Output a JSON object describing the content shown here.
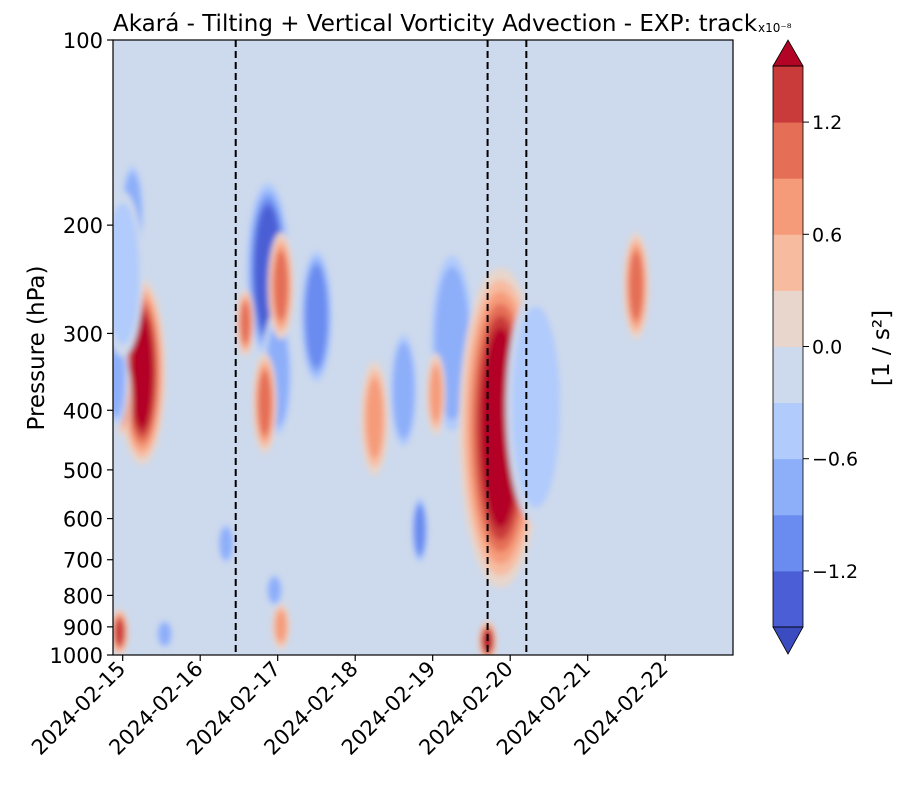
{
  "chart_data": {
    "type": "heatmap",
    "title": "Akará - Tilting + Vertical Vorticity Advection - EXP: track",
    "ylabel": "Pressure (hPa)",
    "y_scale": "log",
    "y_inverted": true,
    "ylim": [
      1000,
      100
    ],
    "y_ticks": [
      100,
      200,
      300,
      400,
      500,
      600,
      700,
      800,
      900,
      1000
    ],
    "y_tick_labels": [
      "100",
      "200",
      "300",
      "400",
      "500",
      "600",
      "700",
      "800",
      "900",
      "1000"
    ],
    "x_ticks": [
      "2024-02-15",
      "2024-02-16",
      "2024-02-17",
      "2024-02-18",
      "2024-02-19",
      "2024-02-20",
      "2024-02-21",
      "2024-02-22"
    ],
    "xlim": [
      "2024-02-14T21:00",
      "2024-02-22T21:00"
    ],
    "vertical_lines": [
      "2024-02-16T11:00",
      "2024-02-19T17:00",
      "2024-02-20T05:00"
    ],
    "colorbar": {
      "label": "[1 / s²]",
      "exponent_label": "x10⁻⁸",
      "levels": [
        -1.5,
        -1.2,
        -0.9,
        -0.6,
        -0.3,
        0.0,
        0.3,
        0.6,
        0.9,
        1.2,
        1.5
      ],
      "tick_values": [
        -1.2,
        -0.6,
        0.0,
        0.6,
        1.2
      ],
      "tick_labels": [
        "−1.2",
        "−0.6",
        "0.0",
        "0.6",
        "1.2"
      ],
      "extend": "both",
      "colormap": "coolwarm",
      "colors": [
        "#4b5ed5",
        "#6a8bef",
        "#8daef9",
        "#b0cbfc",
        "#cdd9ec",
        "#e8d6cc",
        "#f7bba0",
        "#f59b7a",
        "#e46e56",
        "#c93b3b",
        "#b40426"
      ],
      "under_color": "#3b4cc0"
    },
    "features": [
      {
        "date": "2024-02-15T06:00",
        "p_top": 250,
        "p_bottom": 480,
        "value": 1.5
      },
      {
        "date": "2024-02-15T00:00",
        "p_top": 340,
        "p_bottom": 430,
        "value": 0.9
      },
      {
        "date": "2024-02-14T22:00",
        "p_top": 300,
        "p_bottom": 420,
        "value": -0.9
      },
      {
        "date": "2024-02-14T23:00",
        "p_top": 860,
        "p_bottom": 980,
        "value": 1.2
      },
      {
        "date": "2024-02-15T03:00",
        "p_top": 160,
        "p_bottom": 230,
        "value": -0.9
      },
      {
        "date": "2024-02-15T00:00",
        "p_top": 180,
        "p_bottom": 320,
        "value": -0.6
      },
      {
        "date": "2024-02-16T21:00",
        "p_top": 170,
        "p_bottom": 330,
        "value": -1.5
      },
      {
        "date": "2024-02-17T00:00",
        "p_top": 280,
        "p_bottom": 440,
        "value": -0.9
      },
      {
        "date": "2024-02-17T12:00",
        "p_top": 220,
        "p_bottom": 360,
        "value": -1.2
      },
      {
        "date": "2024-02-17T01:00",
        "p_top": 210,
        "p_bottom": 300,
        "value": 0.9
      },
      {
        "date": "2024-02-16T20:00",
        "p_top": 330,
        "p_bottom": 460,
        "value": 0.9
      },
      {
        "date": "2024-02-16T14:00",
        "p_top": 260,
        "p_bottom": 320,
        "value": 0.9
      },
      {
        "date": "2024-02-18T06:00",
        "p_top": 340,
        "p_bottom": 500,
        "value": 0.6
      },
      {
        "date": "2024-02-18T15:00",
        "p_top": 300,
        "p_bottom": 460,
        "value": -0.9
      },
      {
        "date": "2024-02-18T20:00",
        "p_top": 560,
        "p_bottom": 700,
        "value": -1.2
      },
      {
        "date": "2024-02-19T06:00",
        "p_top": 220,
        "p_bottom": 440,
        "value": -0.9
      },
      {
        "date": "2024-02-19T01:00",
        "p_top": 330,
        "p_bottom": 430,
        "value": 0.6
      },
      {
        "date": "2024-02-19T21:00",
        "p_top": 240,
        "p_bottom": 760,
        "value": 1.5
      },
      {
        "date": "2024-02-19T17:00",
        "p_top": 900,
        "p_bottom": 1000,
        "value": 1.5
      },
      {
        "date": "2024-02-17T01:00",
        "p_top": 840,
        "p_bottom": 960,
        "value": 0.6
      },
      {
        "date": "2024-02-16T08:00",
        "p_top": 620,
        "p_bottom": 700,
        "value": -0.9
      },
      {
        "date": "2024-02-16T23:00",
        "p_top": 750,
        "p_bottom": 820,
        "value": -0.9
      },
      {
        "date": "2024-02-15T13:00",
        "p_top": 890,
        "p_bottom": 960,
        "value": -0.9
      },
      {
        "date": "2024-02-21T15:00",
        "p_top": 210,
        "p_bottom": 300,
        "value": 0.9
      },
      {
        "date": "2024-02-20T08:00",
        "p_top": 260,
        "p_bottom": 600,
        "value": -0.6
      }
    ]
  }
}
